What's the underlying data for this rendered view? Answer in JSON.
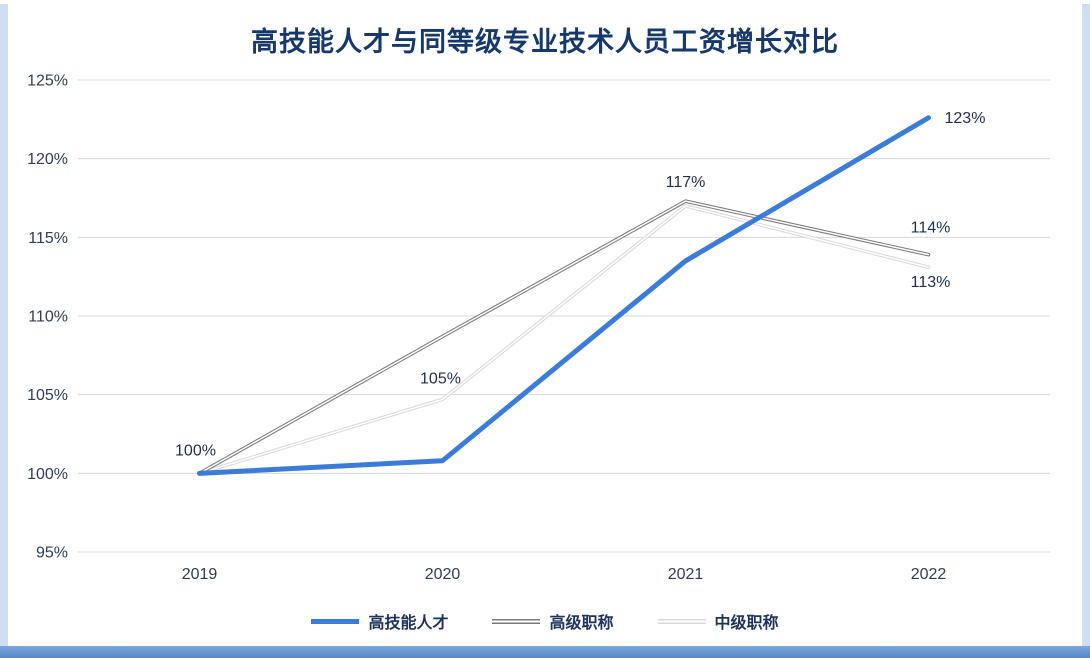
{
  "page": {
    "side_strip_color": "#cfdff2",
    "bottom_strip_color": "#5688c6",
    "title_color": "#16386b"
  },
  "chart_data": {
    "type": "line",
    "title": "高技能人才与同等级专业技术人员工资增长对比",
    "categories": [
      "2019",
      "2020",
      "2021",
      "2022"
    ],
    "y_ticks": [
      "95%",
      "100%",
      "105%",
      "110%",
      "115%",
      "120%",
      "125%"
    ],
    "ylim": [
      95,
      125
    ],
    "y_tick_step": 5,
    "grid": "horizontal",
    "legend_position": "bottom",
    "series": [
      {
        "name": "高技能人才",
        "color": "#3b7cd8",
        "width": 5,
        "casing": false,
        "values": [
          100,
          100.8,
          113.5,
          122.6
        ],
        "point_labels": [
          {
            "index": 0,
            "text": "100%",
            "dx": -4,
            "dy": -18,
            "anchor": "middle"
          },
          {
            "index": 3,
            "text": "123%",
            "dx": 16,
            "dy": 5,
            "anchor": "start"
          }
        ]
      },
      {
        "name": "高级职称",
        "color": "#7a7a7a",
        "width": 3.6,
        "casing": true,
        "values": [
          100,
          108.7,
          117.3,
          113.9
        ],
        "point_labels": [
          {
            "index": 2,
            "text": "117%",
            "dx": 0,
            "dy": -14,
            "anchor": "middle"
          },
          {
            "index": 3,
            "text": "114%",
            "dx": 2,
            "dy": -22,
            "anchor": "middle"
          }
        ]
      },
      {
        "name": "中级职称",
        "color": "#d9d9d9",
        "width": 3.6,
        "casing": true,
        "values": [
          100,
          104.7,
          117.0,
          113.1
        ],
        "point_labels": [
          {
            "index": 1,
            "text": "105%",
            "dx": -2,
            "dy": -16,
            "anchor": "middle"
          },
          {
            "index": 3,
            "text": "113%",
            "dx": 2,
            "dy": 20,
            "anchor": "middle"
          }
        ]
      }
    ]
  }
}
